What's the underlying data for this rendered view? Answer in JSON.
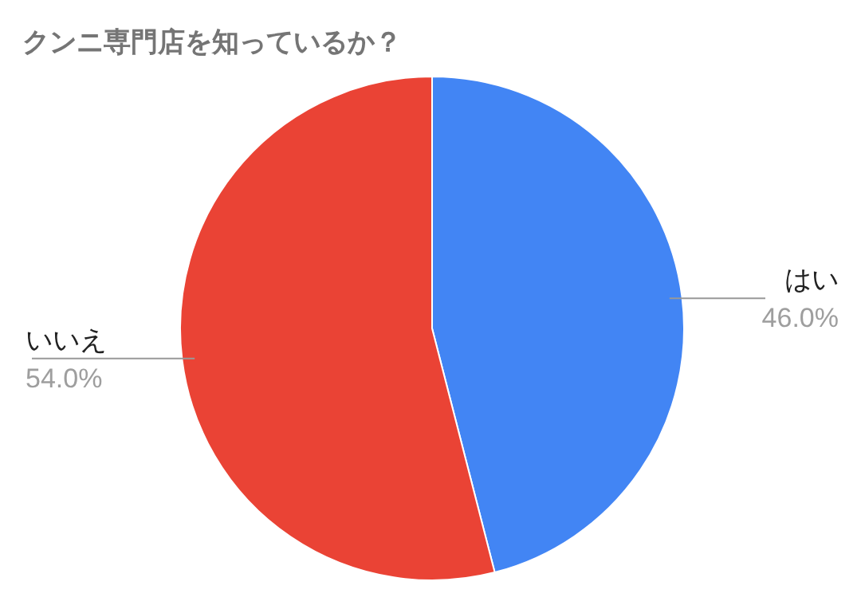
{
  "chart_data": {
    "type": "pie",
    "title": "クンニ専門店を知っているか？",
    "categories": [
      "はい",
      "いいえ"
    ],
    "values": [
      46.0,
      54.0
    ],
    "colors": [
      "#4285f4",
      "#ea4335"
    ],
    "value_labels": [
      "46.0%",
      "54.0%"
    ]
  }
}
